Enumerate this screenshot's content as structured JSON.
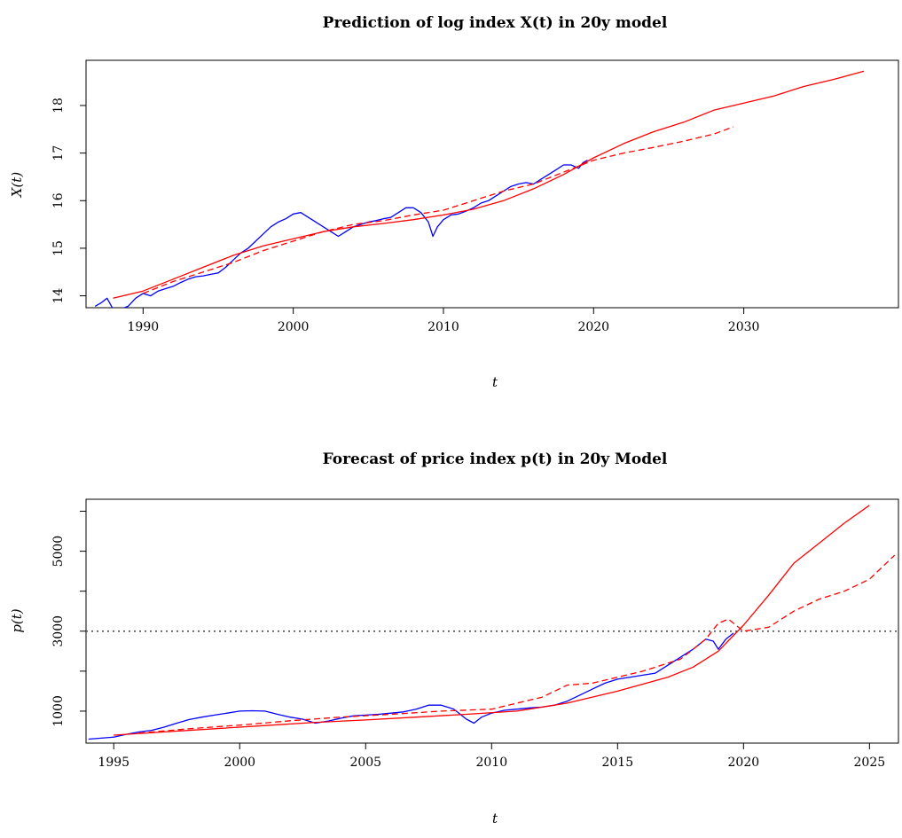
{
  "chart_data": [
    {
      "type": "line",
      "title": "Prediction of log index X(t) in 20y model",
      "xlabel": "t",
      "ylabel": "X(t)",
      "xlim": [
        1986.2,
        2040.3
      ],
      "ylim": [
        13.75,
        18.95
      ],
      "x_ticks": [
        1990,
        2000,
        2010,
        2020,
        2030
      ],
      "y_ticks": [
        14,
        15,
        16,
        17,
        18
      ],
      "x_tick_labels": [
        "1990",
        "2000",
        "2010",
        "2020",
        "2030"
      ],
      "y_tick_labels": [
        "14",
        "15",
        "16",
        "17",
        "18"
      ],
      "colors": {
        "observed": "#0000ff",
        "trend": "#ff0000",
        "forecast": "#ff0000"
      },
      "series": [
        {
          "style": "solid",
          "color": "#0000ff",
          "x": [
            1986.8,
            1987.2,
            1987.6,
            1988.0,
            1988.5,
            1989.0,
            1989.5,
            1990.0,
            1990.5,
            1991.0,
            1991.5,
            1992.0,
            1992.5,
            1993.0,
            1993.5,
            1994.0,
            1994.5,
            1995.0,
            1995.5,
            1996.0,
            1996.5,
            1997.0,
            1997.5,
            1998.0,
            1998.5,
            1999.0,
            1999.5,
            2000.0,
            2000.5,
            2001.0,
            2001.5,
            2002.0,
            2002.5,
            2003.0,
            2003.5,
            2004.0,
            2004.5,
            2005.0,
            2005.5,
            2006.0,
            2006.5,
            2007.0,
            2007.5,
            2008.0,
            2008.5,
            2009.0,
            2009.3,
            2009.6,
            2010.0,
            2010.5,
            2011.0,
            2011.5,
            2012.0,
            2012.5,
            2013.0,
            2013.5,
            2014.0,
            2014.5,
            2015.0,
            2015.5,
            2016.0,
            2016.5,
            2017.0,
            2017.5,
            2018.0,
            2018.5,
            2019.0,
            2019.3,
            2019.6
          ],
          "y": [
            13.78,
            13.85,
            13.95,
            13.72,
            13.72,
            13.78,
            13.95,
            14.05,
            14.0,
            14.1,
            14.15,
            14.2,
            14.28,
            14.35,
            14.4,
            14.42,
            14.45,
            14.48,
            14.6,
            14.75,
            14.9,
            15.0,
            15.15,
            15.3,
            15.45,
            15.55,
            15.62,
            15.72,
            15.75,
            15.65,
            15.55,
            15.45,
            15.35,
            15.25,
            15.35,
            15.45,
            15.5,
            15.55,
            15.58,
            15.62,
            15.65,
            15.75,
            15.85,
            15.85,
            15.75,
            15.55,
            15.25,
            15.45,
            15.6,
            15.7,
            15.72,
            15.78,
            15.85,
            15.95,
            16.0,
            16.1,
            16.2,
            16.3,
            16.35,
            16.38,
            16.35,
            16.45,
            16.55,
            16.65,
            16.75,
            16.75,
            16.68,
            16.8,
            16.85
          ]
        },
        {
          "style": "solid",
          "color": "#ff0000",
          "x": [
            1988.0,
            1990.0,
            1992.0,
            1994.0,
            1996.0,
            1998.0,
            2000.0,
            2002.0,
            2004.0,
            2006.0,
            2008.0,
            2010.0,
            2012.0,
            2014.0,
            2016.0,
            2018.0,
            2020.0,
            2022.0,
            2024.0,
            2026.0,
            2028.0,
            2030.0,
            2032.0,
            2034.0,
            2036.0,
            2038.0
          ],
          "y": [
            13.95,
            14.1,
            14.35,
            14.6,
            14.85,
            15.05,
            15.2,
            15.35,
            15.45,
            15.52,
            15.6,
            15.7,
            15.82,
            16.0,
            16.25,
            16.55,
            16.9,
            17.2,
            17.45,
            17.65,
            17.9,
            18.05,
            18.2,
            18.4,
            18.55,
            18.72
          ]
        },
        {
          "style": "dashed",
          "color": "#ff0000",
          "x": [
            1990.0,
            1992.0,
            1994.0,
            1996.0,
            1998.0,
            2000.0,
            2002.0,
            2004.0,
            2006.0,
            2008.0,
            2010.0,
            2012.0,
            2014.0,
            2016.0,
            2018.0,
            2020.0,
            2022.0,
            2024.0,
            2026.0,
            2028.0,
            2029.3
          ],
          "y": [
            14.05,
            14.3,
            14.5,
            14.7,
            14.95,
            15.15,
            15.35,
            15.5,
            15.58,
            15.7,
            15.8,
            16.0,
            16.2,
            16.35,
            16.6,
            16.85,
            17.0,
            17.12,
            17.25,
            17.4,
            17.55
          ]
        }
      ]
    },
    {
      "type": "line",
      "title": "Forecast of price index p(t) in 20y Model",
      "xlabel": "t",
      "ylabel": "p(t)",
      "xlim": [
        1993.9,
        2026.15
      ],
      "ylim": [
        200,
        6300
      ],
      "x_ticks": [
        1995,
        2000,
        2005,
        2010,
        2015,
        2020,
        2025
      ],
      "y_ticks": [
        1000,
        2000,
        3000,
        4000,
        5000,
        6000
      ],
      "x_tick_labels": [
        "1995",
        "2000",
        "2005",
        "2010",
        "2015",
        "2020",
        "2025"
      ],
      "y_tick_labels": [
        "1000",
        "",
        "3000",
        "",
        "5000",
        ""
      ],
      "hline": {
        "y": 3000,
        "style": "dotted",
        "color": "#555555"
      },
      "series": [
        {
          "style": "solid",
          "color": "#0000ff",
          "x": [
            1994.0,
            1995.0,
            1995.5,
            1996.0,
            1996.5,
            1997.0,
            1997.5,
            1998.0,
            1998.5,
            1999.0,
            1999.5,
            2000.0,
            2000.5,
            2001.0,
            2001.5,
            2002.0,
            2002.5,
            2003.0,
            2003.5,
            2004.0,
            2004.5,
            2005.0,
            2005.5,
            2006.0,
            2006.5,
            2007.0,
            2007.5,
            2008.0,
            2008.5,
            2009.0,
            2009.3,
            2009.6,
            2010.0,
            2010.5,
            2011.0,
            2011.5,
            2012.0,
            2012.5,
            2013.0,
            2013.5,
            2014.0,
            2014.5,
            2015.0,
            2015.5,
            2016.0,
            2016.5,
            2017.0,
            2017.5,
            2018.0,
            2018.5,
            2018.8,
            2019.0,
            2019.3,
            2019.6
          ],
          "y": [
            300,
            350,
            420,
            480,
            520,
            600,
            700,
            790,
            850,
            900,
            950,
            1000,
            1010,
            1000,
            920,
            850,
            800,
            700,
            750,
            820,
            880,
            900,
            920,
            950,
            980,
            1050,
            1150,
            1150,
            1050,
            800,
            700,
            850,
            950,
            1020,
            1050,
            1080,
            1100,
            1150,
            1250,
            1400,
            1550,
            1700,
            1800,
            1850,
            1900,
            1950,
            2150,
            2350,
            2550,
            2800,
            2750,
            2550,
            2800,
            2950
          ]
        },
        {
          "style": "solid",
          "color": "#ff0000",
          "x": [
            1995.0,
            1997.0,
            1999.0,
            2001.0,
            2003.0,
            2005.0,
            2007.0,
            2009.0,
            2011.0,
            2013.0,
            2015.0,
            2017.0,
            2018.0,
            2019.0,
            2020.0,
            2021.0,
            2022.0,
            2023.0,
            2024.0,
            2025.0
          ],
          "y": [
            400,
            480,
            560,
            640,
            720,
            780,
            850,
            920,
            1000,
            1200,
            1500,
            1850,
            2100,
            2500,
            3150,
            3900,
            4700,
            5200,
            5700,
            6150
          ]
        },
        {
          "style": "dashed",
          "color": "#ff0000",
          "x": [
            1996.0,
            1998.0,
            2000.0,
            2002.0,
            2004.0,
            2006.0,
            2008.0,
            2010.0,
            2012.0,
            2013.0,
            2014.0,
            2016.0,
            2017.5,
            2018.5,
            2019.0,
            2019.4,
            2020.0,
            2021.0,
            2022.0,
            2023.0,
            2024.0,
            2025.0,
            2026.0
          ],
          "y": [
            450,
            560,
            650,
            760,
            850,
            920,
            1000,
            1050,
            1350,
            1650,
            1700,
            2000,
            2300,
            2800,
            3200,
            3300,
            3000,
            3100,
            3500,
            3800,
            4000,
            4300,
            4900
          ]
        }
      ]
    }
  ]
}
